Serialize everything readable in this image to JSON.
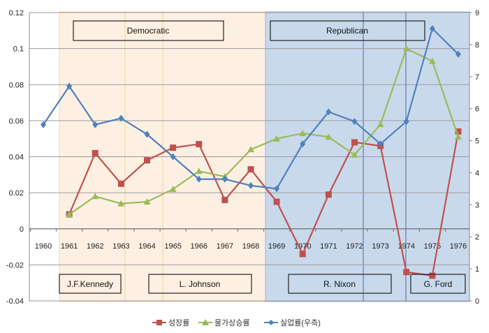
{
  "chart_data": {
    "type": "line",
    "categories": [
      "1960",
      "1961",
      "1962",
      "1963",
      "1964",
      "1965",
      "1966",
      "1967",
      "1968",
      "1969",
      "1970",
      "1971",
      "1972",
      "1973",
      "1974",
      "1975",
      "1976"
    ],
    "yleft": {
      "min": -0.04,
      "max": 0.12,
      "ticks": [
        "-0.04",
        "-0.02",
        "0",
        "0.02",
        "0.04",
        "0.06",
        "0.08",
        "0.1",
        "0.12"
      ]
    },
    "yright": {
      "min": 0,
      "max": 9,
      "ticks": [
        "0",
        "1",
        "2",
        "3",
        "4",
        "5",
        "6",
        "7",
        "8",
        "9"
      ]
    },
    "grid": true,
    "legend_position": "bottom",
    "series": [
      {
        "name": "성장률",
        "axis": "left",
        "color": "#c0504d",
        "marker": "square",
        "values": [
          null,
          0.008,
          0.042,
          0.025,
          0.038,
          0.045,
          0.047,
          0.016,
          0.033,
          0.015,
          -0.014,
          0.019,
          0.048,
          0.046,
          -0.024,
          -0.026,
          0.054
        ]
      },
      {
        "name": "물가상승률",
        "axis": "left",
        "color": "#9bbb59",
        "marker": "triangle",
        "values": [
          null,
          0.008,
          0.018,
          0.014,
          0.015,
          0.022,
          0.032,
          0.029,
          0.044,
          0.05,
          0.053,
          0.051,
          0.041,
          0.058,
          0.1,
          0.093,
          0.051
        ]
      },
      {
        "name": "실업률(우측)",
        "axis": "right",
        "color": "#4f81bd",
        "marker": "diamond",
        "values": [
          5.5,
          6.7,
          5.5,
          5.7,
          5.2,
          4.5,
          3.8,
          3.8,
          3.6,
          3.5,
          4.9,
          5.9,
          5.6,
          4.9,
          5.6,
          8.5,
          7.7
        ]
      }
    ],
    "annotations": {
      "parties": [
        "Democratic",
        "Republican"
      ],
      "presidents": [
        "J.F.Kennedy",
        "L. Johnson",
        "R. Nixon",
        "G. Ford"
      ]
    }
  }
}
